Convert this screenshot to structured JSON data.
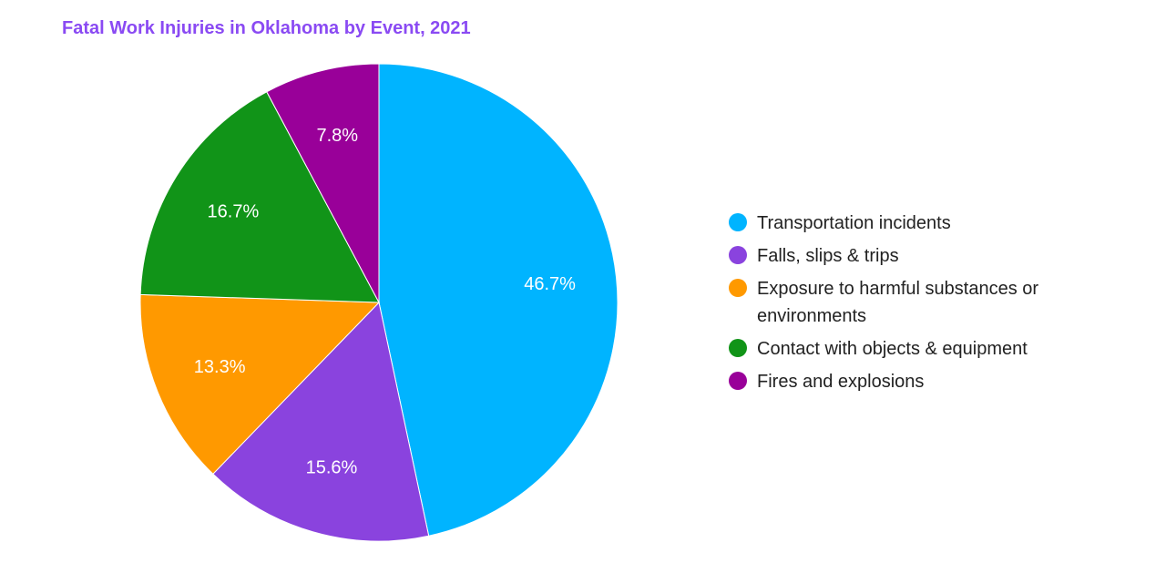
{
  "chart_data": {
    "type": "pie",
    "title": "Fatal Work Injuries in Oklahoma by Event, 2021",
    "legend_position": "right",
    "slices": [
      {
        "label": "Transportation incidents",
        "value": 46.7,
        "display": "46.7%",
        "color": "#00b4ff"
      },
      {
        "label": "Falls, slips & trips",
        "value": 15.6,
        "display": "15.6%",
        "color": "#8a43de"
      },
      {
        "label": "Exposure to harmful substances or environments",
        "value": 13.3,
        "display": "13.3%",
        "color": "#ff9900"
      },
      {
        "label": "Contact with objects & equipment",
        "value": 16.7,
        "display": "16.7%",
        "color": "#119418"
      },
      {
        "label": "Fires and explosions",
        "value": 7.8,
        "display": "7.8%",
        "color": "#990099"
      }
    ]
  }
}
